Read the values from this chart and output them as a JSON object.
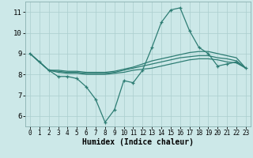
{
  "xlabel": "Humidex (Indice chaleur)",
  "x": [
    0,
    1,
    2,
    3,
    4,
    5,
    6,
    7,
    8,
    9,
    10,
    11,
    12,
    13,
    14,
    15,
    16,
    17,
    18,
    19,
    20,
    21,
    22,
    23
  ],
  "line1": [
    9.0,
    8.6,
    8.2,
    7.9,
    7.9,
    7.8,
    7.4,
    6.8,
    5.7,
    6.3,
    7.7,
    7.6,
    8.2,
    9.3,
    10.5,
    11.1,
    11.2,
    10.1,
    9.3,
    9.0,
    8.4,
    8.5,
    8.6,
    8.3
  ],
  "line2": [
    9.0,
    8.6,
    8.2,
    8.1,
    8.05,
    8.05,
    8.0,
    8.0,
    8.0,
    8.05,
    8.1,
    8.2,
    8.25,
    8.3,
    8.4,
    8.5,
    8.6,
    8.7,
    8.75,
    8.75,
    8.7,
    8.6,
    8.55,
    8.3
  ],
  "line3": [
    9.0,
    8.6,
    8.2,
    8.15,
    8.1,
    8.1,
    8.05,
    8.05,
    8.05,
    8.1,
    8.2,
    8.3,
    8.4,
    8.5,
    8.6,
    8.7,
    8.8,
    8.85,
    8.9,
    8.9,
    8.8,
    8.75,
    8.65,
    8.3
  ],
  "line4": [
    9.0,
    8.6,
    8.2,
    8.2,
    8.15,
    8.15,
    8.1,
    8.1,
    8.1,
    8.15,
    8.25,
    8.35,
    8.5,
    8.65,
    8.75,
    8.85,
    8.95,
    9.05,
    9.1,
    9.1,
    9.0,
    8.9,
    8.8,
    8.3
  ],
  "line_color": "#2e7d74",
  "bg_color": "#cce8e8",
  "grid_color": "#aacece",
  "ylim": [
    5.5,
    11.5
  ],
  "xlim": [
    -0.5,
    23.5
  ],
  "yticks": [
    6,
    7,
    8,
    9,
    10,
    11
  ],
  "xticks": [
    0,
    1,
    2,
    3,
    4,
    5,
    6,
    7,
    8,
    9,
    10,
    11,
    12,
    13,
    14,
    15,
    16,
    17,
    18,
    19,
    20,
    21,
    22,
    23
  ]
}
